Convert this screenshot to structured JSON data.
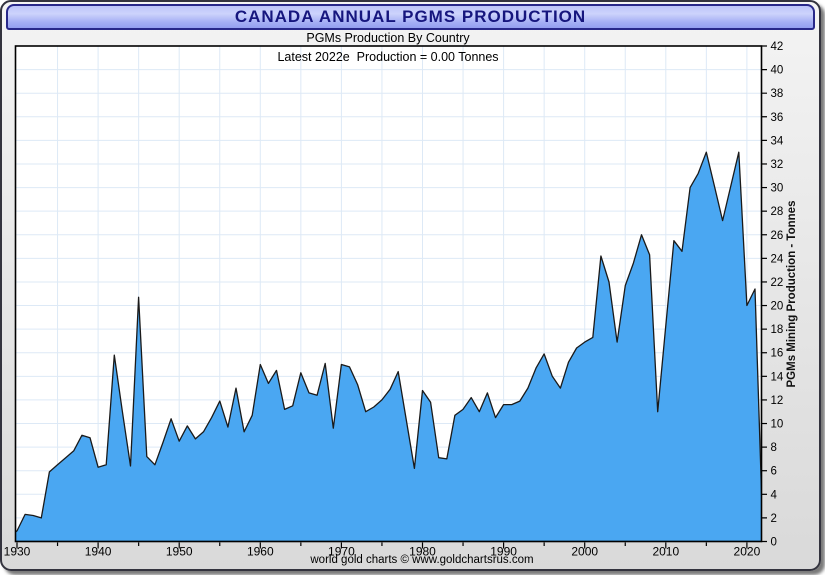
{
  "header": {
    "title": "CANADA ANNUAL PGMS PRODUCTION"
  },
  "subtitles": {
    "line1": "PGMs Production By Country",
    "line2": "Latest 2022e  Production = 0.00 Tonnes"
  },
  "footer": {
    "credit": "world gold charts © www.goldchartsrus.com"
  },
  "chart_data": {
    "type": "area",
    "title": "CANADA ANNUAL PGMS PRODUCTION",
    "subtitle": "PGMs Production By Country",
    "annotation": "Latest 2022e  Production = 0.00 Tonnes",
    "xlabel": "",
    "ylabel": "PGMs Mining Production - Tonnes",
    "ylim": [
      0,
      42
    ],
    "ytick_step": 2,
    "xticks": [
      1930,
      1940,
      1950,
      1960,
      1970,
      1980,
      1990,
      2000,
      2010,
      2020
    ],
    "minor_xtick_step": 5,
    "grid": true,
    "legend": false,
    "x": [
      1929,
      1930,
      1931,
      1932,
      1933,
      1934,
      1935,
      1936,
      1937,
      1938,
      1939,
      1940,
      1941,
      1942,
      1943,
      1944,
      1945,
      1946,
      1947,
      1948,
      1949,
      1950,
      1951,
      1952,
      1953,
      1954,
      1955,
      1956,
      1957,
      1958,
      1959,
      1960,
      1961,
      1962,
      1963,
      1964,
      1965,
      1966,
      1967,
      1968,
      1969,
      1970,
      1971,
      1972,
      1973,
      1974,
      1975,
      1976,
      1977,
      1978,
      1979,
      1980,
      1981,
      1982,
      1983,
      1984,
      1985,
      1986,
      1987,
      1988,
      1989,
      1990,
      1991,
      1992,
      1993,
      1994,
      1995,
      1996,
      1997,
      1998,
      1999,
      2000,
      2001,
      2002,
      2003,
      2004,
      2005,
      2006,
      2007,
      2008,
      2009,
      2010,
      2011,
      2012,
      2013,
      2014,
      2015,
      2016,
      2017,
      2018,
      2019,
      2020,
      2021,
      2022
    ],
    "series": [
      {
        "name": "Canada PGMs Mining Production (Tonnes)",
        "values": [
          0.4,
          0.9,
          2.3,
          2.2,
          2.0,
          5.9,
          6.5,
          7.1,
          7.7,
          9.0,
          8.8,
          6.3,
          6.5,
          15.8,
          11.0,
          6.4,
          20.7,
          7.2,
          6.5,
          8.4,
          10.4,
          8.5,
          9.8,
          8.7,
          9.3,
          10.5,
          11.9,
          9.7,
          13.0,
          9.3,
          10.7,
          15.0,
          13.4,
          14.5,
          11.2,
          11.5,
          14.3,
          12.6,
          12.4,
          15.1,
          9.6,
          15.0,
          14.8,
          13.3,
          11.0,
          11.4,
          12.0,
          12.9,
          14.4,
          10.3,
          6.2,
          12.8,
          11.8,
          7.1,
          7.0,
          10.7,
          11.2,
          12.2,
          11.0,
          12.6,
          10.5,
          11.6,
          11.6,
          11.9,
          13.0,
          14.7,
          15.9,
          14.0,
          13.0,
          15.2,
          16.4,
          16.9,
          17.3,
          24.2,
          22.0,
          16.9,
          21.7,
          23.6,
          26.0,
          24.3,
          11.0,
          18.3,
          25.5,
          24.6,
          30.0,
          31.2,
          33.0,
          30.1,
          27.2,
          30.1,
          33.0,
          20.0,
          21.4,
          0.0
        ]
      }
    ],
    "colors": {
      "area_fill": "#4aa7f2",
      "area_stroke": "#1a1a1a",
      "grid": "#dde9f6",
      "plot_bg": "#ffffff",
      "plot_border": "#000000",
      "frame_bg": "#e9e9e9",
      "title_text": "#16167e",
      "title_bg": "#aeb8f6"
    }
  }
}
